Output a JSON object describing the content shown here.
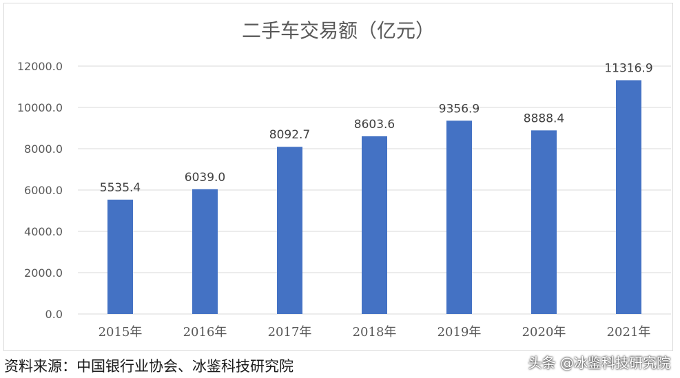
{
  "chart_data": {
    "type": "bar",
    "title": "二手车交易额（亿元）",
    "categories": [
      "2015年",
      "2016年",
      "2017年",
      "2018年",
      "2019年",
      "2020年",
      "2021年"
    ],
    "values": [
      5535.4,
      6039.0,
      8092.7,
      8603.6,
      9356.9,
      8888.4,
      11316.9
    ],
    "value_labels": [
      "5535.4",
      "6039.0",
      "8092.7",
      "8603.6",
      "9356.9",
      "8888.4",
      "11316.9"
    ],
    "y_ticks": [
      "0.0",
      "2000.0",
      "4000.0",
      "6000.0",
      "8000.0",
      "10000.0",
      "12000.0"
    ],
    "ylim": [
      0,
      12000
    ],
    "grid": true,
    "bar_color": "#4472c4"
  },
  "footer": {
    "source": "资料来源：中国银行业协会、冰鉴科技研究院",
    "watermark": "头条 @冰鉴科技研究院"
  }
}
